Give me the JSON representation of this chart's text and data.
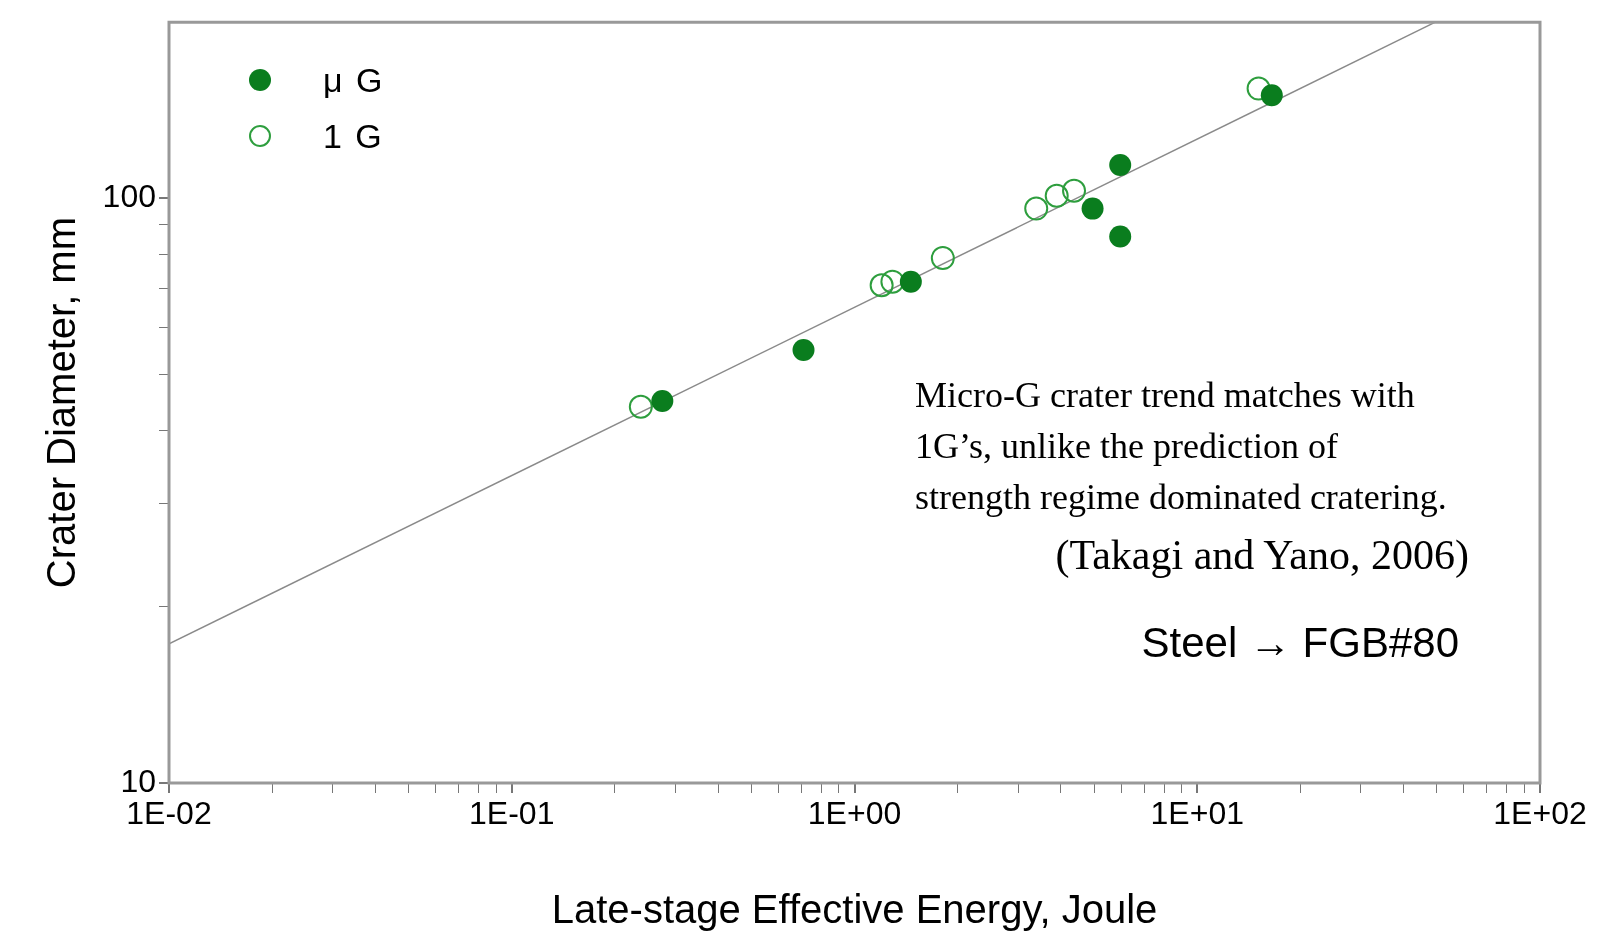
{
  "chart_data": {
    "type": "scatter",
    "xlabel": "Late-stage Effective Energy, Joule",
    "ylabel": "Crater Diameter, mm",
    "log": "xy",
    "grid": false,
    "legend": "top left",
    "marker": "circle",
    "xlim": [
      0.01,
      100
    ],
    "ylim": [
      10,
      200
    ],
    "xticks": [
      {
        "value": 0.01,
        "label": "1E-02"
      },
      {
        "value": 0.02,
        "label": null
      },
      {
        "value": 0.03,
        "label": null
      },
      {
        "value": 0.04,
        "label": null
      },
      {
        "value": 0.05,
        "label": null
      },
      {
        "value": 0.06,
        "label": null
      },
      {
        "value": 0.07,
        "label": null
      },
      {
        "value": 0.08,
        "label": null
      },
      {
        "value": 0.09,
        "label": null
      },
      {
        "value": 0.1,
        "label": "1E-01"
      },
      {
        "value": 0.2,
        "label": null
      },
      {
        "value": 0.3,
        "label": null
      },
      {
        "value": 0.4,
        "label": null
      },
      {
        "value": 0.5,
        "label": null
      },
      {
        "value": 0.6,
        "label": null
      },
      {
        "value": 0.7,
        "label": null
      },
      {
        "value": 0.8,
        "label": null
      },
      {
        "value": 0.9,
        "label": null
      },
      {
        "value": 1,
        "label": "1E+00"
      },
      {
        "value": 2,
        "label": null
      },
      {
        "value": 3,
        "label": null
      },
      {
        "value": 4,
        "label": null
      },
      {
        "value": 5,
        "label": null
      },
      {
        "value": 6,
        "label": null
      },
      {
        "value": 7,
        "label": null
      },
      {
        "value": 8,
        "label": null
      },
      {
        "value": 9,
        "label": null
      },
      {
        "value": 10,
        "label": "1E+01"
      },
      {
        "value": 20,
        "label": null
      },
      {
        "value": 30,
        "label": null
      },
      {
        "value": 40,
        "label": null
      },
      {
        "value": 50,
        "label": null
      },
      {
        "value": 60,
        "label": null
      },
      {
        "value": 70,
        "label": null
      },
      {
        "value": 80,
        "label": null
      },
      {
        "value": 90,
        "label": null
      },
      {
        "value": 100,
        "label": "1E+02"
      }
    ],
    "yticks": [
      10,
      {
        "value": 20,
        "label": null
      },
      {
        "value": 30,
        "label": null
      },
      {
        "value": 40,
        "label": null
      },
      {
        "value": 50,
        "label": null
      },
      {
        "value": 60,
        "label": null
      },
      {
        "value": 70,
        "label": null
      },
      {
        "value": 80,
        "label": null
      },
      {
        "value": 90,
        "label": null
      },
      100
    ],
    "series": [
      {
        "name": "μ G",
        "color": "#0a7d1e",
        "x": [
          0.275,
          0.71,
          1.46,
          4.95,
          5.96,
          5.96,
          16.5
        ],
        "values": [
          45,
          55,
          72,
          96,
          114,
          86,
          150
        ]
      },
      {
        "name": "1 G",
        "color": "#2e9e3e",
        "x": [
          0.238,
          1.2,
          1.29,
          1.81,
          3.39,
          3.89,
          4.37,
          15.1
        ],
        "values": [
          44,
          71,
          72,
          79,
          96,
          101,
          103,
          154
        ]
      },
      {
        "type": "line",
        "color": "#8a8a8a",
        "marker": "none",
        "x": [
          0.01,
          49.5
        ],
        "values": [
          17.3,
          200
        ]
      }
    ],
    "annotations": [
      "Micro-G crater trend matches with 1G’s, unlike the prediction of strength regime dominated cratering.",
      "(Takagi and Yano, 2006)",
      "Steel → FGB#80"
    ]
  }
}
